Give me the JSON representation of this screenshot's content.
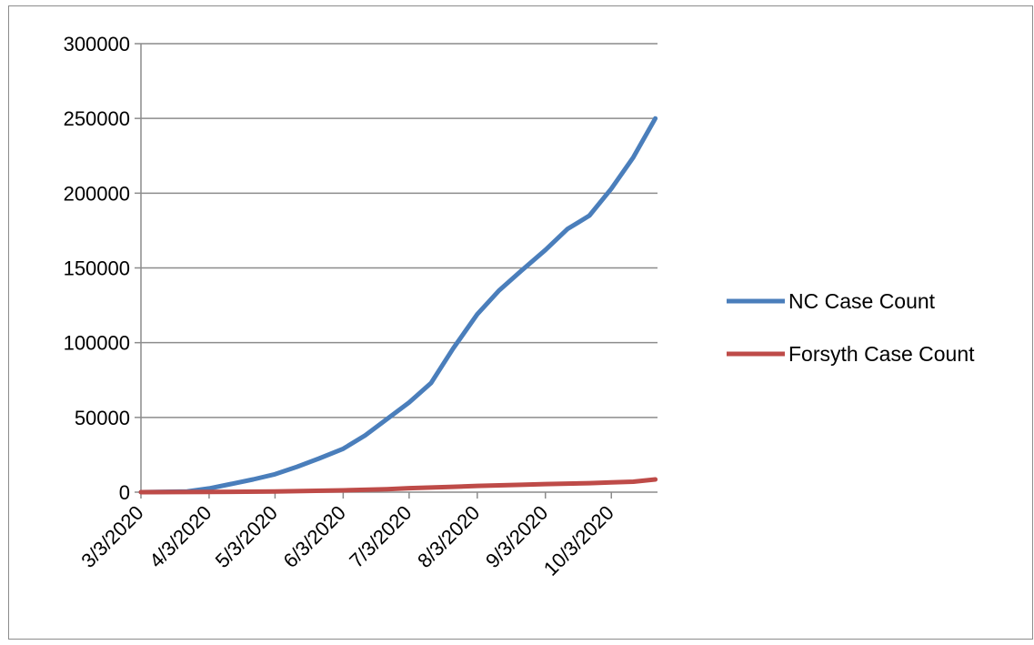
{
  "chart_data": {
    "type": "line",
    "title": "",
    "xlabel": "",
    "ylabel": "",
    "ylim": [
      0,
      300000
    ],
    "yticks": [
      "0",
      "50000",
      "100000",
      "150000",
      "200000",
      "250000",
      "300000"
    ],
    "xticks": [
      "3/3/2020",
      "4/3/2020",
      "5/3/2020",
      "6/3/2020",
      "7/3/2020",
      "8/3/2020",
      "9/3/2020",
      "10/3/2020"
    ],
    "xlim": [
      "2020-03-03",
      "2020-10-24"
    ],
    "grid": "horizontal",
    "legend_position": "right",
    "series": [
      {
        "name": "NC Case Count",
        "color": "#4a7ebb",
        "x": [
          "2020-03-03",
          "2020-03-24",
          "2020-04-03",
          "2020-04-13",
          "2020-04-23",
          "2020-05-03",
          "2020-05-13",
          "2020-05-23",
          "2020-06-03",
          "2020-06-13",
          "2020-06-23",
          "2020-07-03",
          "2020-07-13",
          "2020-07-23",
          "2020-08-03",
          "2020-08-13",
          "2020-08-23",
          "2020-09-03",
          "2020-09-13",
          "2020-09-23",
          "2020-10-03",
          "2020-10-13",
          "2020-10-23"
        ],
        "values": [
          0,
          500,
          2500,
          5500,
          8500,
          12000,
          17000,
          22500,
          29000,
          38000,
          49000,
          60000,
          73000,
          96000,
          119000,
          135000,
          148000,
          162000,
          176000,
          185000,
          203000,
          224000,
          250000
        ]
      },
      {
        "name": "Forsyth Case Count",
        "color": "#be4b48",
        "x": [
          "2020-03-03",
          "2020-04-03",
          "2020-05-03",
          "2020-06-03",
          "2020-06-23",
          "2020-07-03",
          "2020-07-23",
          "2020-08-03",
          "2020-08-23",
          "2020-09-03",
          "2020-09-23",
          "2020-10-03",
          "2020-10-13",
          "2020-10-23"
        ],
        "values": [
          0,
          150,
          500,
          1200,
          2000,
          2700,
          3600,
          4200,
          4900,
          5400,
          6000,
          6500,
          7000,
          8500
        ]
      }
    ]
  }
}
